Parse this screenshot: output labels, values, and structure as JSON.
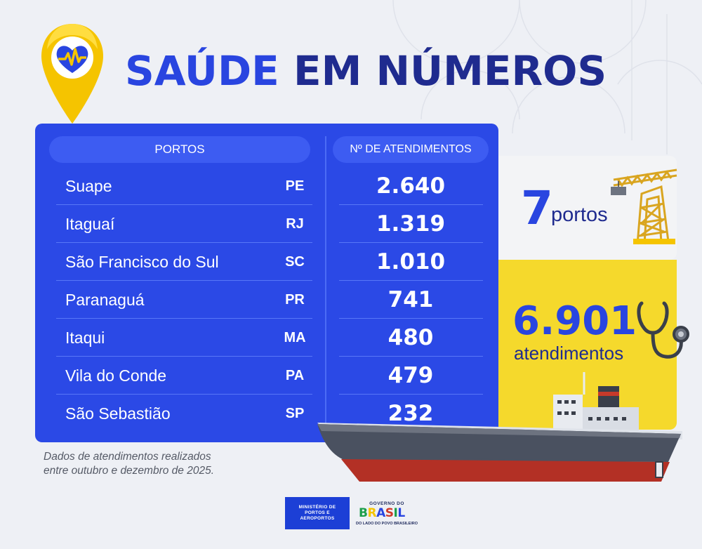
{
  "title": {
    "part1": "SAÚDE",
    "part2": "EM NÚMEROS"
  },
  "colors": {
    "primary_blue": "#2b49e6",
    "dark_blue": "#1f2b8f",
    "yellow": "#f5d92c"
  },
  "table": {
    "headers": {
      "portos": "PORTOS",
      "atendimentos": "Nº DE ATENDIMENTOS"
    },
    "rows": [
      {
        "name": "Suape",
        "uf": "PE",
        "value": "2.640"
      },
      {
        "name": "Itaguaí",
        "uf": "RJ",
        "value": "1.319"
      },
      {
        "name": "São Francisco do Sul",
        "uf": "SC",
        "value": "1.010"
      },
      {
        "name": "Paranaguá",
        "uf": "PR",
        "value": "741"
      },
      {
        "name": "Itaqui",
        "uf": "MA",
        "value": "480"
      },
      {
        "name": "Vila do Conde",
        "uf": "PA",
        "value": "479"
      },
      {
        "name": "São Sebastião",
        "uf": "SP",
        "value": "232"
      }
    ]
  },
  "note": {
    "line1": "Dados de atendimentos realizados",
    "line2": "entre outubro e dezembro de 2025."
  },
  "summary": {
    "ports_count": "7",
    "ports_label": "portos",
    "total": "6.901",
    "total_label": "atendimentos"
  },
  "icons": [
    "health-pin-icon",
    "crane-icon",
    "stethoscope-icon",
    "ship-icon"
  ],
  "footer": {
    "ministry": {
      "line1": "MINISTÉRIO DE",
      "line2": "PORTOS E",
      "line3": "AEROPORTOS"
    },
    "gov": {
      "top": "GOVERNO DO",
      "word": "BRASIL",
      "sub": "DO LADO DO POVO BRASILEIRO"
    }
  }
}
